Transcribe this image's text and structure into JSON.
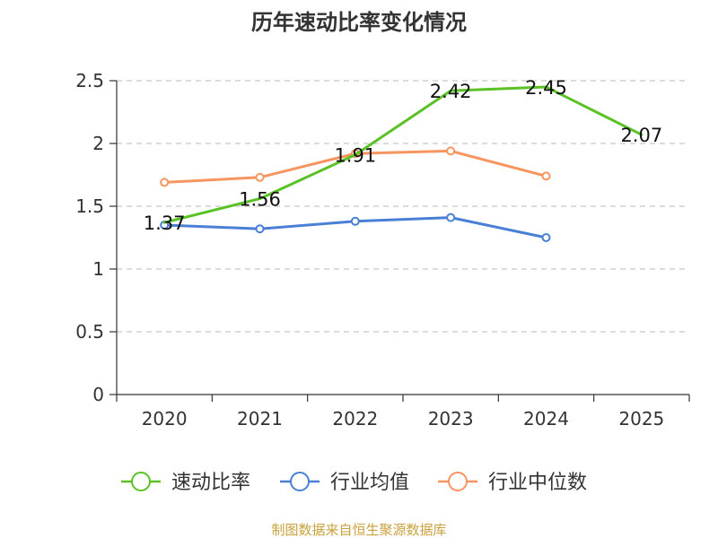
{
  "chart_data": {
    "type": "line",
    "title": "历年速动比率变化情况",
    "xlabel": "",
    "ylabel": "",
    "categories": [
      "2020",
      "2021",
      "2022",
      "2023",
      "2024",
      "2025"
    ],
    "yticks": [
      "0",
      "0.5",
      "1",
      "1.5",
      "2",
      "2.5"
    ],
    "ylim": [
      0,
      2.5
    ],
    "grid": true,
    "legend_position": "bottom",
    "series": [
      {
        "name": "速动比率",
        "color": "#5ac126",
        "values": [
          1.37,
          1.56,
          1.91,
          2.42,
          2.45,
          2.07
        ],
        "labels": [
          "1.37",
          "1.56",
          "1.91",
          "2.42",
          "2.45",
          "2.07"
        ],
        "show_labels": true,
        "show_markers": false
      },
      {
        "name": "行业均值",
        "color": "#4a7fd6",
        "values": [
          1.35,
          1.32,
          1.38,
          1.41,
          1.25,
          null
        ],
        "show_labels": false,
        "show_markers": true
      },
      {
        "name": "行业中位数",
        "color": "#f79560",
        "values": [
          1.69,
          1.73,
          1.92,
          1.94,
          1.74,
          null
        ],
        "show_labels": false,
        "show_markers": true
      }
    ],
    "source": "制图数据来自恒生聚源数据库"
  }
}
